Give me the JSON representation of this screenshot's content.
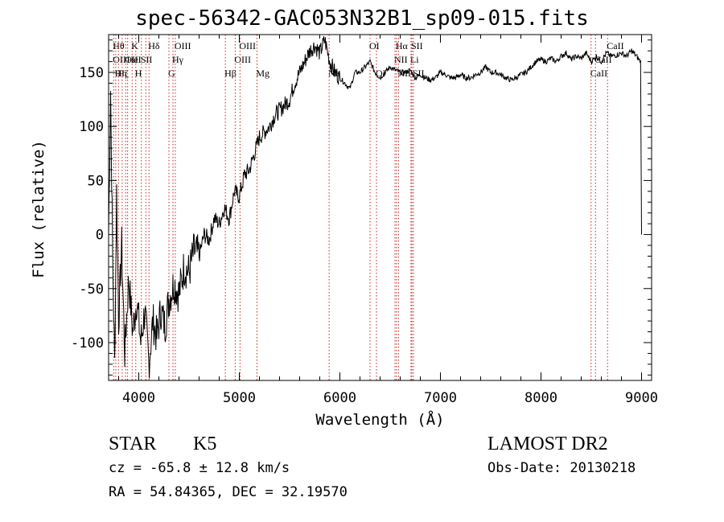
{
  "title": "spec-56342-GAC053N32B1_sp09-015.fits",
  "chart_data": {
    "type": "line",
    "xlabel": "Wavelength (Å)",
    "ylabel": "Flux (relative)",
    "xlim": [
      3700,
      9100
    ],
    "ylim": [
      -135,
      185
    ],
    "x_ticks": [
      4000,
      5000,
      6000,
      7000,
      8000,
      9000
    ],
    "y_ticks": [
      -100,
      -50,
      0,
      50,
      100,
      150
    ],
    "grid": false,
    "series": [
      {
        "x": [
          3700,
          3720,
          3740,
          3760,
          3780,
          3800,
          3830,
          3860,
          3900,
          3940,
          3980,
          4020,
          4060,
          4100,
          4140,
          4180,
          4220,
          4260,
          4300,
          4350,
          4400,
          4450,
          4500,
          4550,
          4600,
          4650,
          4700,
          4750,
          4800,
          4850,
          4900,
          4950,
          5000,
          5050,
          5100,
          5150,
          5200,
          5250,
          5300,
          5350,
          5400,
          5450,
          5500,
          5550,
          5600,
          5650,
          5700,
          5750,
          5800,
          5850,
          5900,
          5950,
          6000,
          6050,
          6100,
          6150,
          6200,
          6250,
          6300,
          6350,
          6400,
          6450,
          6500,
          6550,
          6600,
          6650,
          6700,
          6750,
          6800,
          6850,
          6900,
          6950,
          7000,
          7050,
          7100,
          7150,
          7200,
          7250,
          7300,
          7350,
          7400,
          7450,
          7500,
          7550,
          7600,
          7650,
          7700,
          7750,
          7800,
          7850,
          7900,
          7950,
          8000,
          8050,
          8100,
          8150,
          8200,
          8250,
          8300,
          8350,
          8400,
          8450,
          8500,
          8550,
          8600,
          8650,
          8700,
          8750,
          8800,
          8850,
          8900,
          8950,
          8990,
          9000
        ],
        "y": [
          0,
          135,
          -20,
          -120,
          40,
          -80,
          -10,
          -110,
          -40,
          -90,
          -60,
          -100,
          -70,
          -120,
          -80,
          -95,
          -70,
          -85,
          -60,
          -45,
          -55,
          -30,
          -35,
          -15,
          -20,
          0,
          -5,
          15,
          10,
          25,
          15,
          40,
          35,
          55,
          60,
          75,
          90,
          95,
          100,
          110,
          115,
          120,
          125,
          140,
          150,
          160,
          170,
          175,
          168,
          180,
          160,
          150,
          145,
          140,
          135,
          150,
          150,
          155,
          160,
          150,
          145,
          150,
          155,
          152,
          150,
          150,
          152,
          145,
          148,
          145,
          143,
          145,
          150,
          148,
          145,
          145,
          148,
          145,
          145,
          148,
          150,
          155,
          150,
          150,
          148,
          145,
          143,
          145,
          148,
          150,
          155,
          160,
          162,
          160,
          163,
          160,
          165,
          168,
          162,
          165,
          163,
          168,
          160,
          165,
          160,
          168,
          165,
          166,
          168,
          165,
          170,
          165,
          160,
          0
        ]
      }
    ],
    "lines": [
      {
        "x": 3750,
        "top": "Hθ",
        "mid": "OII"
      },
      {
        "x": 3771,
        "bot": "Hη"
      },
      {
        "x": 3798,
        "top": "",
        "mid": "",
        "bot": "Hζ"
      },
      {
        "x": 3835,
        "bot": ""
      },
      {
        "x": 3870,
        "mid": "OII",
        "bot": ""
      },
      {
        "x": 3889,
        "mid": "HeI"
      },
      {
        "x": 3934,
        "top": "K",
        "mid": ""
      },
      {
        "x": 3970,
        "bot": "H"
      },
      {
        "x": 4026,
        "mid": "SII"
      },
      {
        "x": 4070,
        "mid": ""
      },
      {
        "x": 4102,
        "top": "Hδ"
      },
      {
        "x": 4300,
        "bot": "G"
      },
      {
        "x": 4340,
        "mid": "Hγ"
      },
      {
        "x": 4363,
        "top": "OIII"
      },
      {
        "x": 4861,
        "bot": "Hβ"
      },
      {
        "x": 4959,
        "mid": "OIII"
      },
      {
        "x": 5007,
        "top": "OIII"
      },
      {
        "x": 5175,
        "bot": "Mg"
      },
      {
        "x": 5893,
        "bot": "Na"
      },
      {
        "x": 6300,
        "top": "OI"
      },
      {
        "x": 6364,
        "bot": "OI"
      },
      {
        "x": 6548,
        "mid": "NII"
      },
      {
        "x": 6563,
        "top": "Hα"
      },
      {
        "x": 6583,
        "bot": "NII"
      },
      {
        "x": 6707,
        "mid": "Li"
      },
      {
        "x": 6716,
        "top": "SII"
      },
      {
        "x": 6731,
        "bot": "SII"
      },
      {
        "x": 8498,
        "bot": "CaII"
      },
      {
        "x": 8542,
        "mid": "CaII"
      },
      {
        "x": 8662,
        "top": "CaII"
      }
    ]
  },
  "info": {
    "class": "STAR",
    "subclass": "K5",
    "survey": "LAMOST DR2",
    "cz": "cz = -65.8 ± 12.8 km/s",
    "obsdate": "Obs-Date: 20130218",
    "radec": "RA =  54.84365, DEC =  32.19570"
  }
}
